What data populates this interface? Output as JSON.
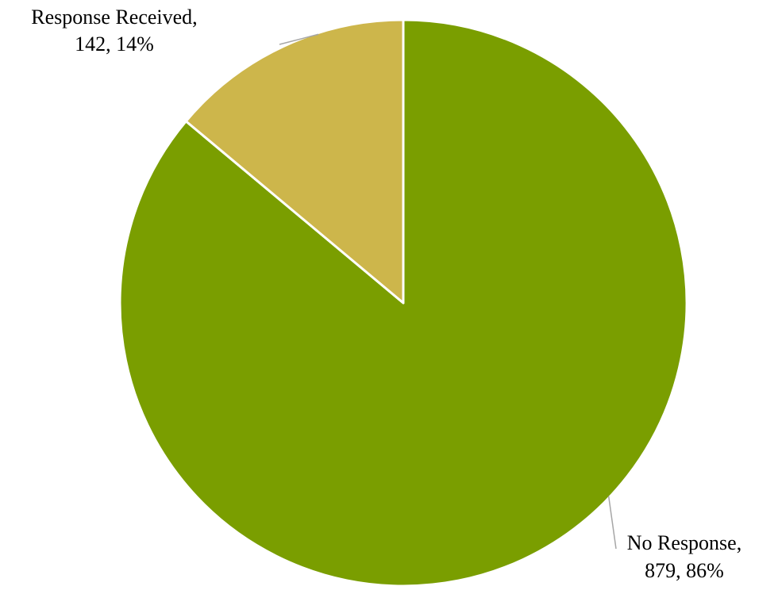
{
  "chart_data": {
    "type": "pie",
    "slices": [
      {
        "name": "No Response",
        "value": 879,
        "percent": "86%",
        "color": "#7a9e00",
        "label_line1": "No Response,",
        "label_line2": "879, 86%"
      },
      {
        "name": "Response Received",
        "value": 142,
        "percent": "14%",
        "color": "#cdb64b",
        "label_line1": "Response Received,",
        "label_line2": "142, 14%"
      }
    ],
    "title": "",
    "legend": "none",
    "start_angle": "12 o'clock",
    "direction": "clockwise"
  }
}
